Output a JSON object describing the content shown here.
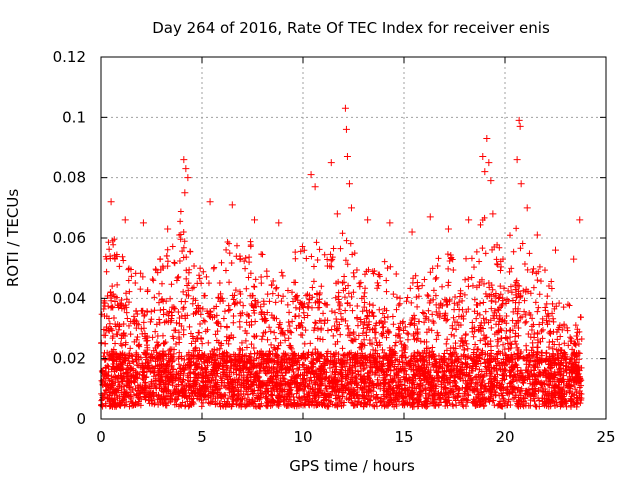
{
  "chart_data": {
    "type": "scatter",
    "title": "Day 264 of 2016, Rate Of TEC Index for receiver enis",
    "xlabel": "GPS time / hours",
    "ylabel": "ROTI / TECUs",
    "xlim": [
      0,
      25
    ],
    "ylim": [
      0,
      0.12
    ],
    "x_ticks": [
      0,
      5,
      10,
      15,
      20,
      25
    ],
    "x_tick_labels": [
      "0",
      "5",
      "10",
      "15",
      "20",
      "25"
    ],
    "y_ticks": [
      0,
      0.02,
      0.04,
      0.06,
      0.08,
      0.1,
      0.12
    ],
    "y_tick_labels": [
      "0",
      "0.02",
      "0.04",
      "0.06",
      "0.08",
      "0.1",
      "0.12"
    ],
    "grid": true,
    "marker": "+",
    "color": "#ff0000",
    "series": [
      {
        "name": "ROTI",
        "points": [
          [
            0.5,
            0.072
          ],
          [
            1.2,
            0.066
          ],
          [
            2.1,
            0.065
          ],
          [
            3.3,
            0.063
          ],
          [
            4.1,
            0.086
          ],
          [
            4.2,
            0.083
          ],
          [
            4.3,
            0.08
          ],
          [
            4.15,
            0.075
          ],
          [
            5.4,
            0.072
          ],
          [
            6.5,
            0.071
          ],
          [
            7.6,
            0.066
          ],
          [
            8.8,
            0.065
          ],
          [
            10.4,
            0.081
          ],
          [
            10.6,
            0.077
          ],
          [
            11.4,
            0.085
          ],
          [
            11.7,
            0.068
          ],
          [
            12.1,
            0.103
          ],
          [
            12.15,
            0.096
          ],
          [
            12.2,
            0.087
          ],
          [
            12.3,
            0.078
          ],
          [
            12.4,
            0.07
          ],
          [
            13.2,
            0.066
          ],
          [
            14.3,
            0.065
          ],
          [
            15.4,
            0.062
          ],
          [
            16.3,
            0.067
          ],
          [
            17.2,
            0.063
          ],
          [
            18.2,
            0.066
          ],
          [
            18.9,
            0.087
          ],
          [
            19.0,
            0.082
          ],
          [
            19.1,
            0.093
          ],
          [
            19.2,
            0.085
          ],
          [
            19.3,
            0.079
          ],
          [
            19.4,
            0.068
          ],
          [
            20.7,
            0.099
          ],
          [
            20.75,
            0.097
          ],
          [
            20.6,
            0.086
          ],
          [
            20.8,
            0.078
          ],
          [
            21.1,
            0.07
          ],
          [
            21.6,
            0.061
          ],
          [
            22.5,
            0.056
          ],
          [
            23.4,
            0.053
          ],
          [
            23.7,
            0.066
          ]
        ]
      }
    ],
    "background_band": {
      "hours": [
        0.0,
        0.5,
        1.0,
        1.5,
        2.0,
        2.5,
        3.0,
        3.5,
        4.0,
        4.5,
        5.0,
        5.5,
        6.0,
        6.5,
        7.0,
        7.5,
        8.0,
        8.5,
        9.0,
        9.5,
        10.0,
        10.5,
        11.0,
        11.5,
        12.0,
        12.5,
        13.0,
        13.5,
        14.0,
        14.5,
        15.0,
        15.5,
        16.0,
        16.5,
        17.0,
        17.5,
        18.0,
        18.5,
        19.0,
        19.5,
        20.0,
        20.5,
        21.0,
        21.5,
        22.0,
        22.5,
        23.0,
        23.5
      ],
      "upper_envelope": [
        0.055,
        0.062,
        0.055,
        0.05,
        0.05,
        0.048,
        0.055,
        0.058,
        0.07,
        0.062,
        0.05,
        0.05,
        0.06,
        0.062,
        0.055,
        0.06,
        0.055,
        0.048,
        0.05,
        0.055,
        0.06,
        0.062,
        0.058,
        0.06,
        0.065,
        0.06,
        0.052,
        0.05,
        0.055,
        0.05,
        0.045,
        0.048,
        0.05,
        0.052,
        0.055,
        0.055,
        0.055,
        0.06,
        0.068,
        0.06,
        0.055,
        0.068,
        0.062,
        0.055,
        0.05,
        0.045,
        0.042,
        0.035
      ]
    }
  }
}
